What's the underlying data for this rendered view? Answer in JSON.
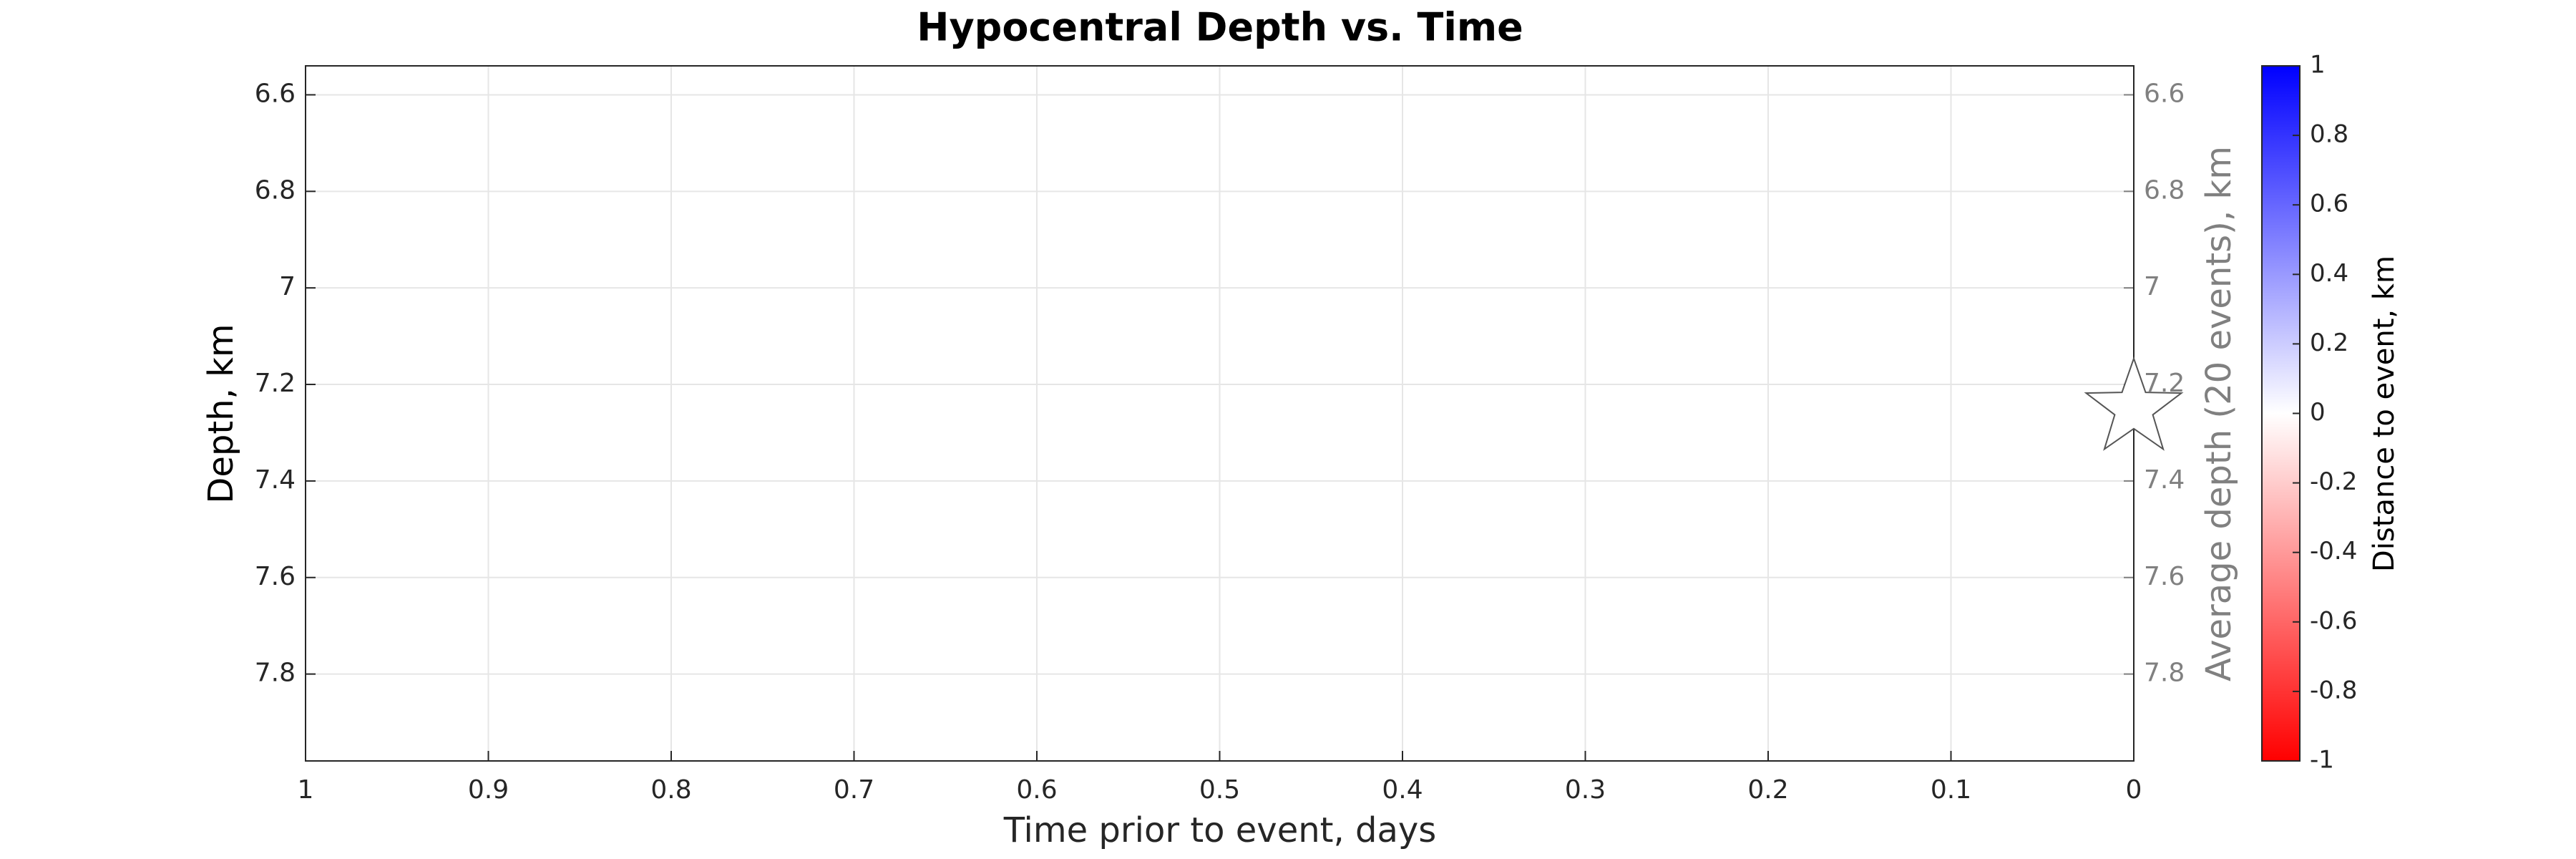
{
  "chart_data": {
    "type": "scatter",
    "title": "Hypocentral Depth vs. Time",
    "xlabel": "Time prior to event, days",
    "ylabel": "Depth, km",
    "y2label": "Average depth (20 events), km",
    "colorbar_label": "Distance to event, km",
    "x": [
      0
    ],
    "values": [
      7.25
    ],
    "marker": "star",
    "marker_fill": "#ffffff",
    "marker_edge": "#555555",
    "xlim": [
      1,
      0
    ],
    "xticks": [
      1,
      0.9,
      0.8,
      0.7,
      0.6,
      0.5,
      0.4,
      0.3,
      0.2,
      0.1,
      0
    ],
    "ylim": [
      6.54,
      7.98
    ],
    "yticks": [
      6.6,
      6.8,
      7,
      7.2,
      7.4,
      7.6,
      7.8
    ],
    "y2lim": [
      6.54,
      7.98
    ],
    "y2ticks": [
      6.6,
      6.8,
      7,
      7.2,
      7.4,
      7.6,
      7.8
    ],
    "y_reversed": true,
    "y2_color": "#808080",
    "grid": true,
    "colormap": [
      "#ff0000",
      "#ffffff",
      "#0000ff"
    ],
    "clim": [
      -1,
      1
    ],
    "cticks": [
      -1,
      -0.8,
      -0.6,
      -0.4,
      -0.2,
      0,
      0.2,
      0.4,
      0.6,
      0.8,
      1
    ]
  }
}
